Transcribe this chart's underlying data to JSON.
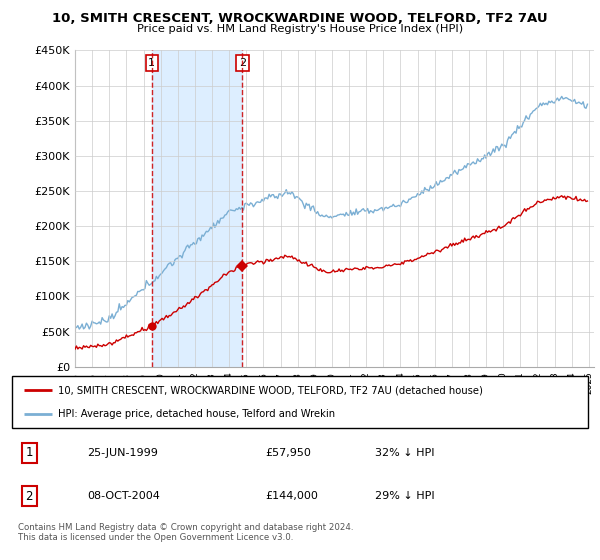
{
  "title": "10, SMITH CRESCENT, WROCKWARDINE WOOD, TELFORD, TF2 7AU",
  "subtitle": "Price paid vs. HM Land Registry's House Price Index (HPI)",
  "legend_line1": "10, SMITH CRESCENT, WROCKWARDINE WOOD, TELFORD, TF2 7AU (detached house)",
  "legend_line2": "HPI: Average price, detached house, Telford and Wrekin",
  "footer": "Contains HM Land Registry data © Crown copyright and database right 2024.\nThis data is licensed under the Open Government Licence v3.0.",
  "transaction1_date": "25-JUN-1999",
  "transaction1_price": "£57,950",
  "transaction1_hpi": "32% ↓ HPI",
  "transaction2_date": "08-OCT-2004",
  "transaction2_price": "£144,000",
  "transaction2_hpi": "29% ↓ HPI",
  "hpi_color": "#7bafd4",
  "price_color": "#cc0000",
  "vline_color": "#cc0000",
  "shade_color": "#ddeeff",
  "ylim_max": 450000,
  "yticks": [
    0,
    50000,
    100000,
    150000,
    200000,
    250000,
    300000,
    350000,
    400000,
    450000
  ],
  "ytick_labels": [
    "£0",
    "£50K",
    "£100K",
    "£150K",
    "£200K",
    "£250K",
    "£300K",
    "£350K",
    "£400K",
    "£450K"
  ],
  "background_color": "#ffffff",
  "grid_color": "#cccccc",
  "t1_year": 1999.484,
  "t1_price": 57950,
  "t2_year": 2004.771,
  "t2_price": 144000
}
